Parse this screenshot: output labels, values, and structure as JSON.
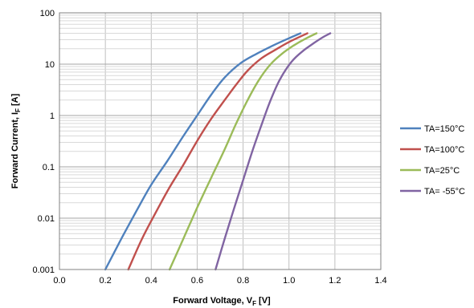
{
  "chart_data": {
    "type": "line",
    "title": "",
    "xlabel": "Forward Voltage, V",
    "xlabel_sub": "F",
    "xlabel_unit": " [V]",
    "ylabel": "Forward Current, I",
    "ylabel_sub": "F",
    "ylabel_unit": " [A]",
    "xlim": [
      0,
      1.4
    ],
    "ylim": [
      0.001,
      100
    ],
    "yscale": "log",
    "grid": true,
    "legend_position": "right",
    "xticks": [
      0,
      0.2,
      0.4,
      0.6,
      0.8,
      1.0,
      1.2,
      1.4
    ],
    "xtick_labels": [
      "0.0",
      "0.2",
      "0.4",
      "0.6",
      "0.8",
      "1.0",
      "1.2",
      "1.4"
    ],
    "yticks": [
      0.001,
      0.01,
      0.1,
      1,
      10,
      100
    ],
    "ytick_labels": [
      "0.001",
      "0.01",
      "0.1",
      "1",
      "10",
      "100"
    ],
    "series": [
      {
        "name": "TA=150°C",
        "color": "#4f81bd",
        "x": [
          0.2,
          0.27,
          0.34,
          0.4,
          0.47,
          0.54,
          0.6,
          0.66,
          0.72,
          0.79,
          0.86,
          0.93,
          1.0,
          1.05
        ],
        "y": [
          0.001,
          0.004,
          0.015,
          0.045,
          0.13,
          0.4,
          1.0,
          2.5,
          5.5,
          10.5,
          16,
          23,
          32,
          40
        ]
      },
      {
        "name": "TA=100°C",
        "color": "#c0504d",
        "x": [
          0.3,
          0.36,
          0.42,
          0.48,
          0.54,
          0.6,
          0.66,
          0.72,
          0.77,
          0.82,
          0.88,
          0.94,
          1.0,
          1.08
        ],
        "y": [
          0.001,
          0.004,
          0.013,
          0.04,
          0.11,
          0.32,
          0.85,
          2.0,
          4.0,
          7.5,
          13,
          19,
          27,
          40
        ]
      },
      {
        "name": "TA=25°C",
        "color": "#9bbb59",
        "x": [
          0.48,
          0.54,
          0.6,
          0.66,
          0.72,
          0.77,
          0.82,
          0.87,
          0.92,
          0.97,
          1.02,
          1.07,
          1.12
        ],
        "y": [
          0.001,
          0.004,
          0.016,
          0.06,
          0.22,
          0.7,
          2.0,
          5.0,
          10,
          16,
          23,
          31,
          40
        ]
      },
      {
        "name": "TA= -55°C",
        "color": "#8064a2",
        "x": [
          0.68,
          0.72,
          0.76,
          0.8,
          0.84,
          0.88,
          0.92,
          0.96,
          1.01,
          1.06,
          1.11,
          1.15,
          1.18
        ],
        "y": [
          0.001,
          0.004,
          0.015,
          0.055,
          0.2,
          0.65,
          2.0,
          5.0,
          11,
          18,
          26,
          34,
          40
        ]
      }
    ]
  }
}
